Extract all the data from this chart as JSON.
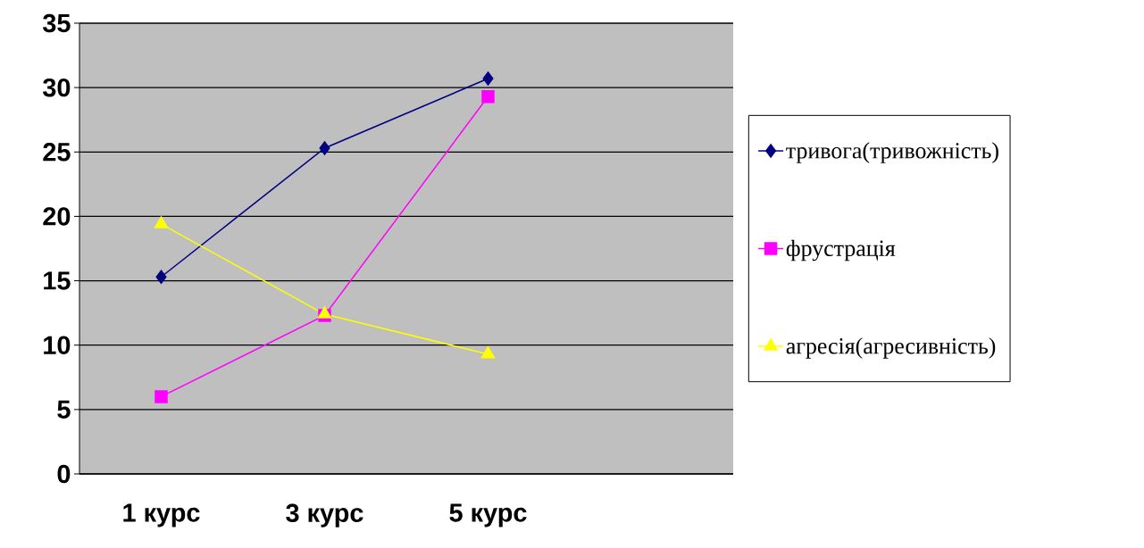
{
  "chart_data": {
    "type": "line",
    "categories": [
      "1 курс",
      "3 курс",
      "5 курс",
      null
    ],
    "series": [
      {
        "name": "тривога(тривожність)",
        "color": "#000080",
        "marker": "diamond",
        "values": [
          15.3,
          25.3,
          30.7,
          null
        ]
      },
      {
        "name": "фрустрація",
        "color": "#ff00ff",
        "marker": "square",
        "values": [
          6.0,
          12.3,
          29.3,
          null
        ]
      },
      {
        "name": "агресія(агресивність)",
        "color": "#ffff00",
        "marker": "triangle",
        "values": [
          19.4,
          12.4,
          9.3,
          null
        ]
      }
    ],
    "ylim": [
      0,
      35
    ],
    "yticks": [
      0,
      5,
      10,
      15,
      20,
      25,
      30,
      35
    ],
    "grid": "y",
    "legend": "right"
  }
}
